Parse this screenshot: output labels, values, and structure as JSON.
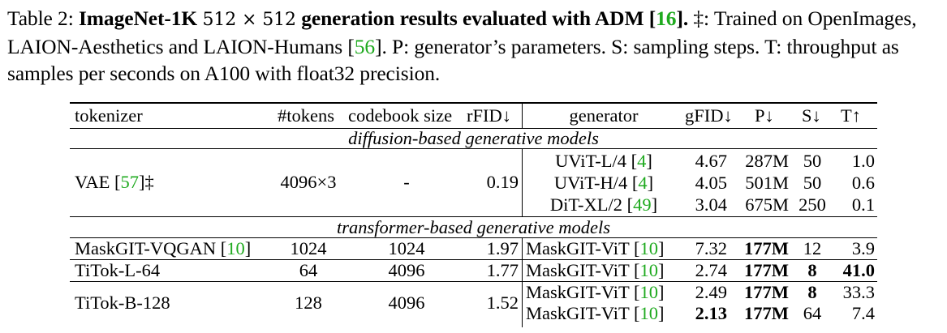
{
  "caption": {
    "label": "Table 2:",
    "title": "ImageNet-1K",
    "resolution": "512 × 512",
    "title_rest": "generation results evaluated with ADM",
    "title_ref": "16",
    "title_close": "].",
    "text1": "‡: Trained on OpenImages, LAION-Aesthetics and LAION-Humans [",
    "ref56": "56",
    "text2": "]. P: generator’s parameters. S: sampling steps. T: throughput as samples per seconds on A100 with float32 precision."
  },
  "table": {
    "headers": {
      "tokenizer": "tokenizer",
      "tokens": "#tokens",
      "codebook": "codebook size",
      "rfid": "rFID↓",
      "generator": "generator",
      "gfid": "gFID↓",
      "p": "P↓",
      "s": "S↓",
      "t": "T↑"
    },
    "sections": {
      "diffusion": "diffusion-based generative models",
      "transformer": "transformer-based generative models"
    },
    "vae": {
      "tokenizer": "VAE [",
      "ref": "57",
      "suffix": "]‡",
      "tokens": "4096×3",
      "codebook": "-",
      "rfid": "0.19"
    },
    "diffusion_rows": [
      {
        "gen": "UViT-L/4 [",
        "ref": "4",
        "gfid": "4.67",
        "p": "287M",
        "s": "50",
        "t": "1.0"
      },
      {
        "gen": "UViT-H/4 [",
        "ref": "4",
        "gfid": "4.05",
        "p": "501M",
        "s": "50",
        "t": "0.6"
      },
      {
        "gen": "DiT-XL/2 [",
        "ref": "49",
        "gfid": "3.04",
        "p": "675M",
        "s": "250",
        "t": "0.1"
      }
    ],
    "maskgit_vqgan": {
      "tokenizer": "MaskGIT-VQGAN [",
      "ref": "10",
      "tokens": "1024",
      "codebook": "1024",
      "rfid": "1.97",
      "gen": "MaskGIT-ViT [",
      "gen_ref": "10",
      "gfid": "7.32",
      "p": "177M",
      "s": "12",
      "t": "3.9"
    },
    "titok_l": {
      "tokenizer": "TiTok-L-64",
      "tokens": "64",
      "codebook": "4096",
      "rfid": "1.77",
      "gen": "MaskGIT-ViT [",
      "gen_ref": "10",
      "gfid": "2.74",
      "p": "177M",
      "s": "8",
      "t": "41.0"
    },
    "titok_b": {
      "tokenizer": "TiTok-B-128",
      "tokens": "128",
      "codebook": "4096",
      "rfid": "1.52",
      "rows": [
        {
          "gen": "MaskGIT-ViT [",
          "gen_ref": "10",
          "gfid": "2.49",
          "p": "177M",
          "s": "8",
          "t": "33.3"
        },
        {
          "gen": "MaskGIT-ViT [",
          "gen_ref": "10",
          "gfid": "2.13",
          "p": "177M",
          "s": "64",
          "t": "7.4"
        }
      ]
    }
  }
}
